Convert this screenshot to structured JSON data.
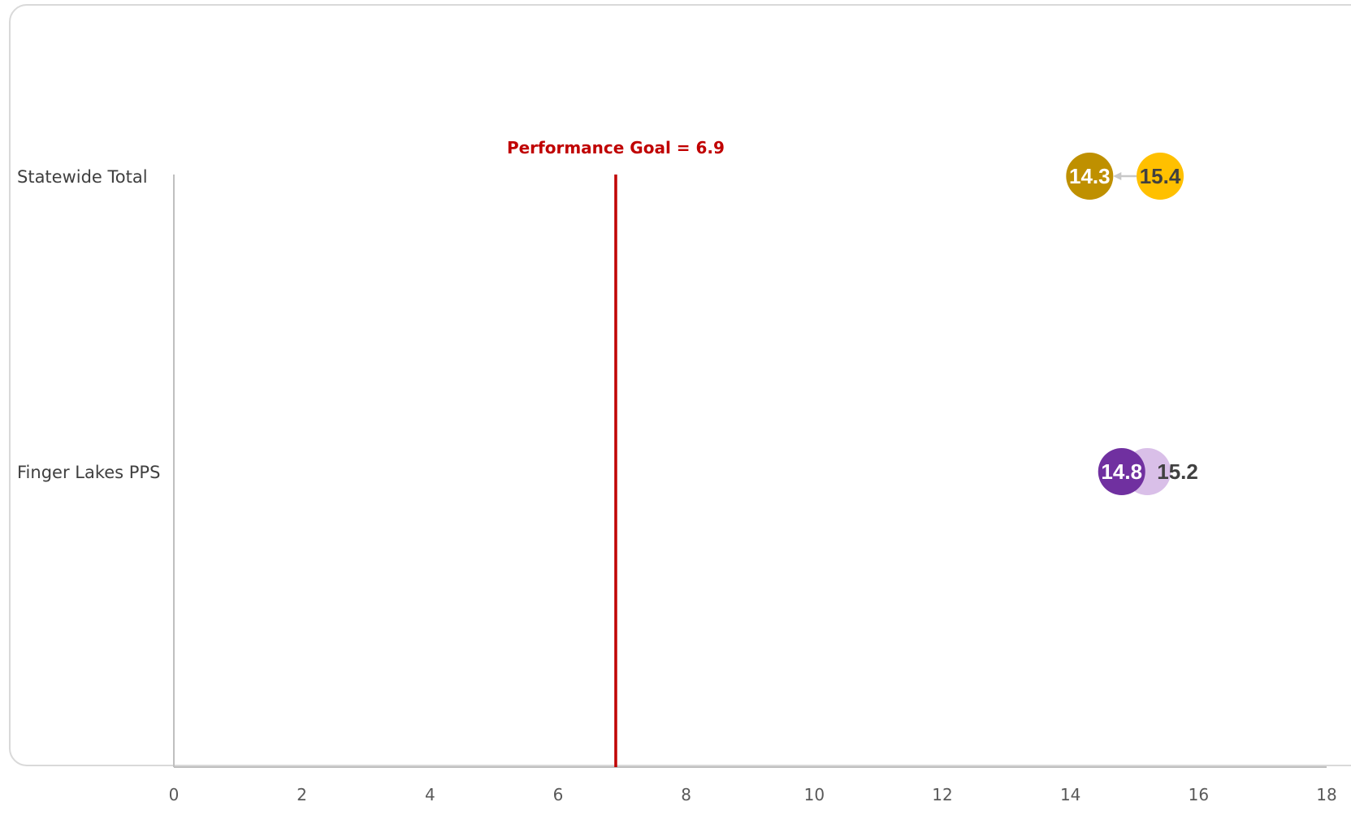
{
  "chart_data": {
    "type": "scatter",
    "title": "",
    "xlabel": "",
    "ylabel": "",
    "xlim": [
      0,
      18
    ],
    "x_ticks": [
      "0",
      "2",
      "4",
      "6",
      "8",
      "10",
      "12",
      "14",
      "16",
      "18"
    ],
    "grid": false,
    "categories": [
      "Statewide Total",
      "Finger Lakes PPS"
    ],
    "reference_line": {
      "value": 6.9,
      "label": "Performance Goal = 6.9",
      "color": "#c00000"
    },
    "points": [
      {
        "category": "Statewide Total",
        "value": 15.4,
        "label": "15.4",
        "role": "earlier",
        "color": "#ffc000",
        "text_color": "#404040"
      },
      {
        "category": "Statewide Total",
        "value": 14.3,
        "label": "14.3",
        "role": "later",
        "color": "#bf9000",
        "text_color": "#ffffff"
      },
      {
        "category": "Finger Lakes PPS",
        "value": 15.2,
        "label": "15.2",
        "role": "earlier",
        "color": "#d9bfe8",
        "text_color": "#404040"
      },
      {
        "category": "Finger Lakes PPS",
        "value": 14.8,
        "label": "14.8",
        "role": "later",
        "color": "#7030a0",
        "text_color": "#ffffff"
      }
    ],
    "arrow_color": "#c8c8c8",
    "axis_color": "#bfbfbf"
  }
}
